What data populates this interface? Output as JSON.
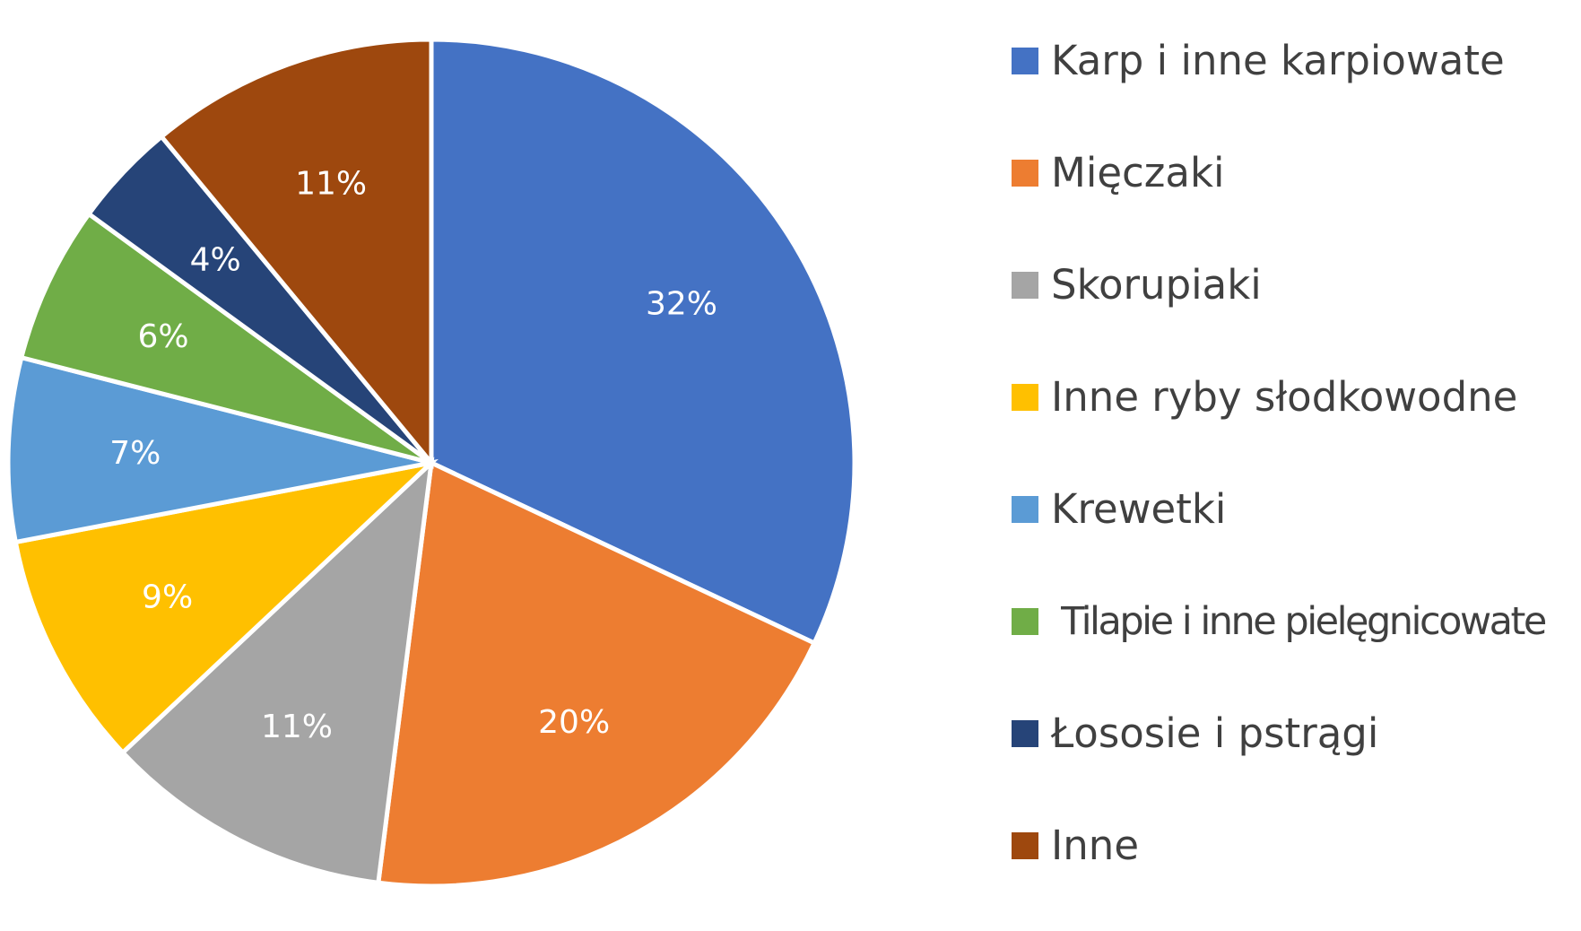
{
  "chart_data": {
    "type": "pie",
    "title": "",
    "legend_position": "right",
    "start_angle_deg": 0,
    "direction": "clockwise",
    "slices": [
      {
        "label": "Karp i inne karpiowate",
        "value": 32,
        "display": "32%",
        "color": "#4472C4"
      },
      {
        "label": "Mięczaki",
        "value": 20,
        "display": "20%",
        "color": "#ED7D31"
      },
      {
        "label": "Skorupiaki",
        "value": 11,
        "display": "11%",
        "color": "#A5A5A5"
      },
      {
        "label": "Inne ryby słodkowodne",
        "value": 9,
        "display": "9%",
        "color": "#FFC000"
      },
      {
        "label": "Krewetki",
        "value": 7,
        "display": "7%",
        "color": "#5B9BD5"
      },
      {
        "label": " Tilapie i inne pielęgnicowate",
        "value": 6,
        "display": "6%",
        "color": "#70AD47"
      },
      {
        "label": "Łososie i pstrągi",
        "value": 4,
        "display": "4%",
        "color": "#264478"
      },
      {
        "label": "Inne",
        "value": 11,
        "display": "11%",
        "color": "#9E480E"
      }
    ]
  }
}
